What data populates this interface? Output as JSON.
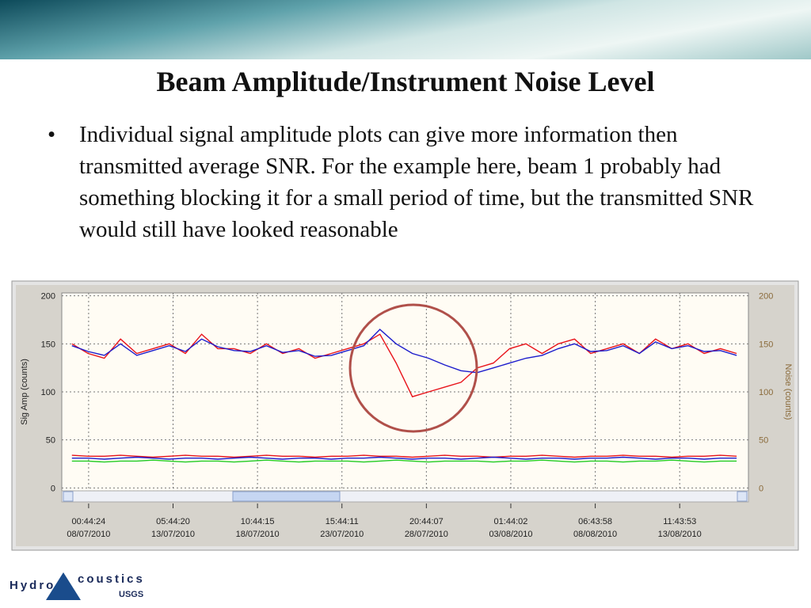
{
  "slide": {
    "title": "Beam Amplitude/Instrument Noise Level",
    "bullets": [
      "Individual signal amplitude plots can give more information then transmitted average SNR.  For the example here, beam 1 probably had something blocking it for a small period of time, but the transmitted SNR would still have looked reasonable"
    ]
  },
  "logo": {
    "left": "Hydro",
    "right": "coustics",
    "sub": "USGS"
  },
  "chart_data": {
    "type": "line",
    "ylabel": "Sig Amp (counts)",
    "y2label": "Noise (counts)",
    "xlim": [
      "06/07/2010 09:00:00",
      "17/08/2010 17:30:00"
    ],
    "xticks": [
      {
        "time": "00:44:24",
        "date": "08/07/2010"
      },
      {
        "time": "05:44:20",
        "date": "13/07/2010"
      },
      {
        "time": "10:44:15",
        "date": "18/07/2010"
      },
      {
        "time": "15:44:11",
        "date": "23/07/2010"
      },
      {
        "time": "20:44:07",
        "date": "28/07/2010"
      },
      {
        "time": "01:44:02",
        "date": "03/08/2010"
      },
      {
        "time": "06:43:58",
        "date": "08/08/2010"
      },
      {
        "time": "11:43:53",
        "date": "13/08/2010"
      }
    ],
    "ylim": [
      -3,
      203
    ],
    "yticks": [
      0,
      50,
      100,
      150,
      200
    ],
    "y2lim": [
      -3,
      203
    ],
    "y2ticks": [
      0,
      50,
      100,
      150,
      200
    ],
    "grid": true,
    "x": [
      "07/07/2010",
      "08/07/2010",
      "09/07/2010",
      "10/07/2010",
      "11/07/2010",
      "12/07/2010",
      "13/07/2010",
      "14/07/2010",
      "15/07/2010",
      "16/07/2010",
      "17/07/2010",
      "18/07/2010",
      "19/07/2010",
      "20/07/2010",
      "21/07/2010",
      "22/07/2010",
      "23/07/2010",
      "24/07/2010",
      "25/07/2010",
      "26/07/2010",
      "27/07/2010",
      "28/07/2010",
      "29/07/2010",
      "30/07/2010",
      "31/07/2010",
      "01/08/2010",
      "02/08/2010",
      "03/08/2010",
      "04/08/2010",
      "05/08/2010",
      "06/08/2010",
      "07/08/2010",
      "08/08/2010",
      "09/08/2010",
      "10/08/2010",
      "11/08/2010",
      "12/08/2010",
      "13/08/2010",
      "14/08/2010",
      "15/08/2010",
      "16/08/2010",
      "17/08/2010"
    ],
    "series": [
      {
        "color": "#e8141b",
        "values": [
          150,
          140,
          135,
          155,
          140,
          145,
          150,
          140,
          160,
          145,
          145,
          140,
          150,
          140,
          145,
          135,
          140,
          145,
          150,
          160,
          130,
          95,
          100,
          105,
          110,
          125,
          130,
          145,
          150,
          140,
          150,
          155,
          140,
          145,
          150,
          140,
          155,
          145,
          150,
          140,
          145,
          140
        ]
      },
      {
        "color": "#1c1ccc",
        "values": [
          148,
          142,
          138,
          150,
          138,
          143,
          148,
          142,
          155,
          147,
          143,
          142,
          148,
          141,
          143,
          137,
          138,
          143,
          148,
          165,
          150,
          140,
          135,
          128,
          122,
          120,
          125,
          130,
          135,
          138,
          145,
          150,
          142,
          143,
          148,
          140,
          152,
          145,
          148,
          142,
          143,
          138
        ]
      },
      {
        "color": "#e8141b",
        "axis": "y2",
        "values": [
          34,
          33,
          33,
          34,
          33,
          32,
          33,
          34,
          33,
          33,
          32,
          33,
          34,
          33,
          33,
          32,
          33,
          33,
          34,
          33,
          33,
          32,
          33,
          34,
          33,
          33,
          32,
          33,
          33,
          34,
          33,
          32,
          33,
          33,
          34,
          33,
          33,
          32,
          33,
          33,
          34,
          33
        ]
      },
      {
        "color": "#1c1ccc",
        "axis": "y2",
        "values": [
          31,
          31,
          30,
          31,
          32,
          31,
          30,
          31,
          31,
          30,
          31,
          32,
          31,
          30,
          31,
          31,
          30,
          31,
          31,
          32,
          31,
          30,
          31,
          31,
          30,
          31,
          32,
          31,
          30,
          31,
          31,
          30,
          31,
          31,
          32,
          31,
          30,
          31,
          31,
          30,
          31,
          31
        ]
      },
      {
        "color": "#22cc22",
        "axis": "y2",
        "values": [
          28,
          28,
          27,
          28,
          28,
          29,
          28,
          27,
          28,
          28,
          27,
          28,
          29,
          28,
          27,
          28,
          28,
          28,
          27,
          28,
          29,
          28,
          27,
          28,
          28,
          28,
          27,
          28,
          28,
          29,
          28,
          27,
          28,
          28,
          27,
          28,
          28,
          29,
          28,
          27,
          28,
          28
        ]
      }
    ]
  }
}
